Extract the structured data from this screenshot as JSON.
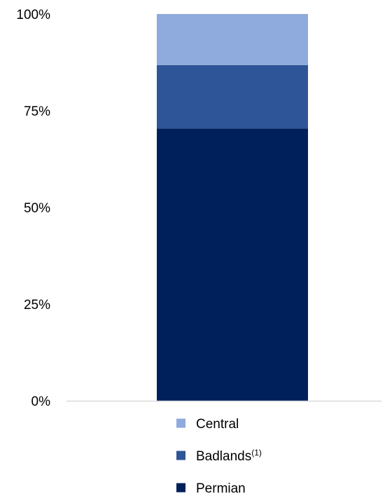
{
  "chart_data": {
    "type": "bar",
    "stacked": true,
    "categories": [
      ""
    ],
    "ylim": [
      0,
      100
    ],
    "yticks": [
      0,
      25,
      50,
      75,
      100
    ],
    "ytick_labels": [
      "0%",
      "25%",
      "50%",
      "75%",
      "100%"
    ],
    "series": [
      {
        "name": "Permian",
        "values": [
          70.4
        ],
        "color": "#00205B"
      },
      {
        "name": "Badlands",
        "name_superscript": "(1)",
        "values": [
          16.4
        ],
        "color": "#2E5597"
      },
      {
        "name": "Central",
        "values": [
          13.2
        ],
        "color": "#8FAADC"
      }
    ],
    "legend": {
      "position": "bottom",
      "order": [
        "Central",
        "Badlands",
        "Permian"
      ]
    },
    "grid": false,
    "axis_line_color": "#D9D9D9"
  }
}
